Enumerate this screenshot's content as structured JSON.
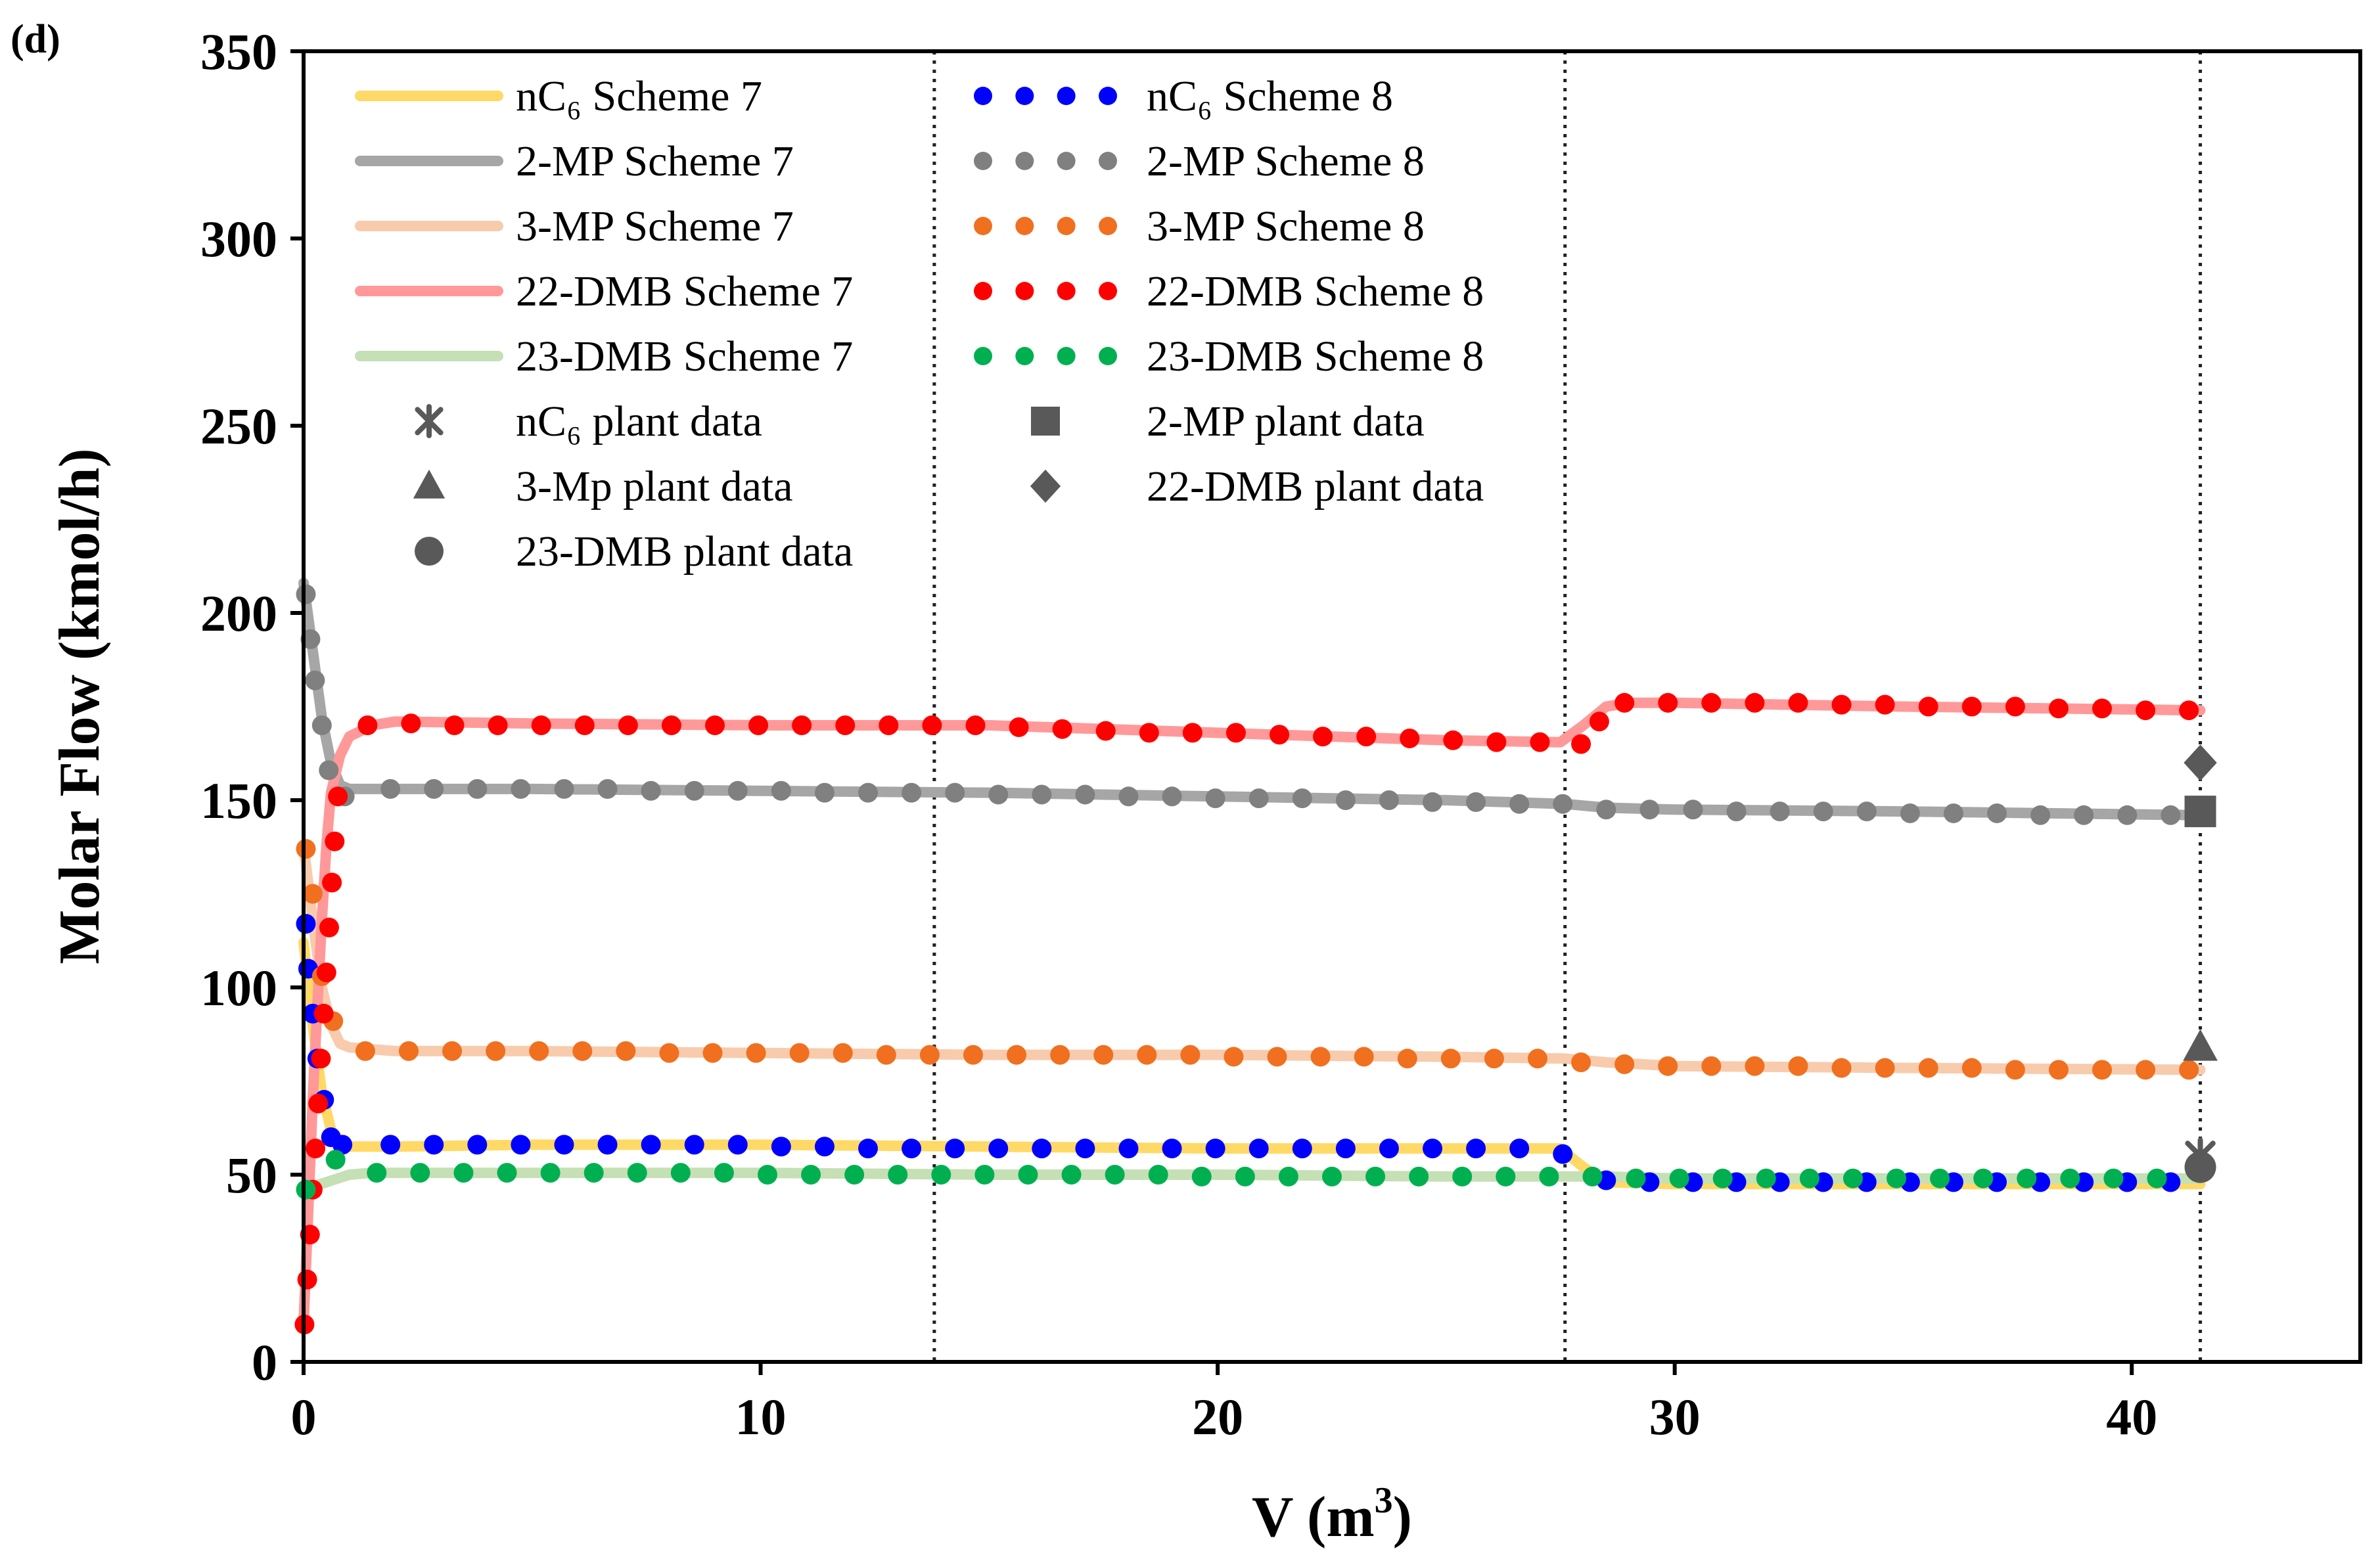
{
  "chart_data": {
    "type": "line",
    "panel_label": "(d)",
    "xlabel_main": "V (m",
    "xlabel_sup": "3",
    "xlabel_close": ")",
    "ylabel": "Molar Flow (kmol/h)",
    "xlim": [
      0,
      45
    ],
    "ylim": [
      0,
      350
    ],
    "xticks": [
      0,
      10,
      20,
      30,
      40
    ],
    "yticks": [
      0,
      50,
      100,
      150,
      200,
      250,
      300,
      350
    ],
    "grid": false,
    "legend_position": "top-left",
    "vlines": [
      13.8,
      27.6,
      41.5
    ],
    "line_series": [
      {
        "name": "nC₆ Scheme 7",
        "color": "#FFD966",
        "x": [
          0,
          0.2,
          0.4,
          0.6,
          0.8,
          1.0,
          2,
          5,
          10,
          15,
          20,
          25,
          27.5,
          28,
          28.5,
          30,
          35,
          41.5
        ],
        "y": [
          112,
          90,
          72,
          62,
          58,
          57.5,
          57.5,
          58,
          58,
          57.5,
          57,
          57,
          57,
          52,
          48,
          47.5,
          47.5,
          47.5
        ]
      },
      {
        "name": "2-MP Scheme 7",
        "color": "#A6A6A6",
        "x": [
          0,
          0.2,
          0.4,
          0.6,
          0.8,
          1.0,
          2,
          5,
          10,
          15,
          20,
          25,
          27.6,
          28.5,
          30,
          35,
          41.5
        ],
        "y": [
          208,
          190,
          172,
          160,
          154,
          153,
          153,
          153,
          152.5,
          152,
          151,
          150,
          149,
          148,
          147.5,
          147,
          146
        ]
      },
      {
        "name": "3-MP Scheme 7",
        "color": "#F8CBAD",
        "x": [
          0,
          0.2,
          0.4,
          0.6,
          0.8,
          1.0,
          2,
          5,
          10,
          15,
          20,
          25,
          27.6,
          28.5,
          30,
          35,
          41.5
        ],
        "y": [
          138,
          118,
          100,
          90,
          85,
          84,
          83,
          83,
          82.5,
          82,
          82,
          81.5,
          81,
          80,
          79,
          78.5,
          78
        ]
      },
      {
        "name": "22-DMB Scheme 7",
        "color": "#FF9999",
        "x": [
          0,
          0.1,
          0.2,
          0.3,
          0.4,
          0.5,
          0.6,
          0.8,
          1.0,
          1.5,
          2,
          5,
          10,
          15,
          20,
          25,
          27.5,
          28,
          28.5,
          29,
          30,
          35,
          41.5
        ],
        "y": [
          10,
          40,
          70,
          95,
          118,
          138,
          152,
          162,
          167,
          170,
          171,
          170.5,
          170,
          170,
          168,
          166,
          165.5,
          170,
          175,
          176,
          176,
          175,
          174
        ]
      },
      {
        "name": "23-DMB Scheme 7",
        "color": "#C5E0B4",
        "x": [
          0,
          0.5,
          1.0,
          1.5,
          2,
          5,
          10,
          15,
          20,
          25,
          27.6,
          28.5,
          30,
          35,
          41.5
        ],
        "y": [
          46,
          48,
          50,
          50.5,
          50.5,
          50.5,
          50.5,
          50,
          50,
          49.5,
          49.5,
          49.5,
          49,
          49,
          49
        ]
      }
    ],
    "dot_series": [
      {
        "name": "nC₆ Scheme 8",
        "color": "#0000FF",
        "x": [
          0.05,
          0.1,
          0.2,
          0.3,
          0.45,
          0.6,
          0.85,
          1.9,
          2.85,
          3.8,
          4.75,
          5.7,
          6.65,
          7.6,
          8.55,
          9.5,
          10.45,
          11.4,
          12.35,
          13.3,
          14.25,
          15.2,
          16.15,
          17.1,
          18.05,
          19,
          19.95,
          20.9,
          21.85,
          22.8,
          23.75,
          24.7,
          25.65,
          26.6,
          27.55,
          28.5,
          29.45,
          30.4,
          31.35,
          32.3,
          33.25,
          34.2,
          35.15,
          36.1,
          37.05,
          38,
          38.95,
          39.9,
          40.85
        ],
        "y": [
          117,
          105,
          93,
          81,
          70,
          60,
          58,
          58,
          58,
          58,
          58,
          58,
          58,
          58,
          58,
          58,
          57.5,
          57.5,
          57,
          57,
          57,
          57,
          57,
          57,
          57,
          57,
          57,
          57,
          57,
          57,
          57,
          57,
          57,
          57,
          55.5,
          48.5,
          48,
          48,
          48,
          48,
          48,
          48,
          48,
          48,
          48,
          48,
          48,
          48,
          48
        ]
      },
      {
        "name": "2-MP Scheme 8",
        "color": "#808080",
        "x": [
          0.05,
          0.15,
          0.25,
          0.4,
          0.55,
          0.9,
          1.9,
          2.85,
          3.8,
          4.75,
          5.7,
          6.65,
          7.6,
          8.55,
          9.5,
          10.45,
          11.4,
          12.35,
          13.3,
          14.25,
          15.2,
          16.15,
          17.1,
          18.05,
          19,
          19.95,
          20.9,
          21.85,
          22.8,
          23.75,
          24.7,
          25.65,
          26.6,
          27.55,
          28.5,
          29.45,
          30.4,
          31.35,
          32.3,
          33.25,
          34.2,
          35.15,
          36.1,
          37.05,
          38,
          38.95,
          39.9,
          40.85
        ],
        "y": [
          205,
          193,
          182,
          170,
          158,
          151,
          153,
          153,
          153,
          153,
          153,
          153,
          152.5,
          152.5,
          152.5,
          152.5,
          152,
          152,
          152,
          152,
          151.5,
          151.5,
          151.5,
          151,
          151,
          150.5,
          150.5,
          150.5,
          150,
          150,
          149.5,
          149.5,
          149,
          149,
          147.5,
          147.5,
          147.5,
          147,
          147,
          147,
          147,
          146.5,
          146.5,
          146.5,
          146,
          146,
          146,
          146
        ]
      },
      {
        "name": "3-MP Scheme 8",
        "color": "#F07020",
        "x": [
          0.05,
          0.2,
          0.4,
          0.65,
          1.35,
          2.3,
          3.25,
          4.2,
          5.15,
          6.1,
          7.05,
          8,
          8.95,
          9.9,
          10.85,
          11.8,
          12.75,
          13.7,
          14.65,
          15.6,
          16.55,
          17.5,
          18.45,
          19.4,
          20.35,
          21.3,
          22.25,
          23.2,
          24.15,
          25.1,
          26.05,
          27,
          27.95,
          28.9,
          29.85,
          30.8,
          31.75,
          32.7,
          33.65,
          34.6,
          35.55,
          36.5,
          37.45,
          38.4,
          39.35,
          40.3,
          41.25
        ],
        "y": [
          137,
          125,
          103,
          91,
          83,
          83,
          83,
          83,
          83,
          83,
          83,
          82.5,
          82.5,
          82.5,
          82.5,
          82.5,
          82,
          82,
          82,
          82,
          82,
          82,
          82,
          82,
          81.5,
          81.5,
          81.5,
          81.5,
          81,
          81,
          81,
          81,
          80,
          79.5,
          79,
          79,
          79,
          79,
          78.5,
          78.5,
          78.5,
          78.5,
          78,
          78,
          78,
          78,
          78
        ]
      },
      {
        "name": "22-DMB Scheme 8",
        "color": "#FF0000",
        "x": [
          0.02,
          0.08,
          0.14,
          0.2,
          0.26,
          0.32,
          0.38,
          0.44,
          0.5,
          0.56,
          0.62,
          0.68,
          0.75,
          1.4,
          2.35,
          3.3,
          4.25,
          5.2,
          6.15,
          7.1,
          8.05,
          9,
          9.95,
          10.9,
          11.85,
          12.8,
          13.75,
          14.7,
          15.65,
          16.6,
          17.55,
          18.5,
          19.45,
          20.4,
          21.35,
          22.3,
          23.25,
          24.2,
          25.15,
          26.1,
          27.05,
          27.95,
          28.35,
          28.9,
          29.85,
          30.8,
          31.75,
          32.7,
          33.65,
          34.6,
          35.55,
          36.5,
          37.45,
          38.4,
          39.35,
          40.3,
          41.25
        ],
        "y": [
          10,
          22,
          34,
          46,
          57,
          69,
          81,
          93,
          104,
          116,
          128,
          139,
          151,
          170,
          170.5,
          170,
          170,
          170,
          170,
          170,
          170,
          170,
          170,
          170,
          170,
          170,
          170,
          170,
          169.5,
          169,
          168.5,
          168,
          168,
          168,
          167.5,
          167,
          167,
          166.5,
          166,
          165.5,
          165.5,
          165,
          171,
          176,
          176,
          176,
          176,
          176,
          175.5,
          175.5,
          175,
          175,
          175,
          174.5,
          174.5,
          174,
          174
        ]
      },
      {
        "name": "23-DMB Scheme 8",
        "color": "#00B050",
        "x": [
          0.05,
          0.7,
          1.6,
          2.55,
          3.5,
          4.45,
          5.4,
          6.35,
          7.3,
          8.25,
          9.2,
          10.15,
          11.1,
          12.05,
          13,
          13.95,
          14.9,
          15.85,
          16.8,
          17.75,
          18.7,
          19.65,
          20.6,
          21.55,
          22.5,
          23.45,
          24.4,
          25.35,
          26.3,
          27.25,
          28.2,
          29.15,
          30.1,
          31.05,
          32,
          32.95,
          33.9,
          34.85,
          35.8,
          36.75,
          37.7,
          38.65,
          39.6,
          40.55
        ],
        "y": [
          46,
          54,
          50.5,
          50.5,
          50.5,
          50.5,
          50.5,
          50.5,
          50.5,
          50.5,
          50.5,
          50,
          50,
          50,
          50,
          50,
          50,
          50,
          50,
          50,
          50,
          49.5,
          49.5,
          49.5,
          49.5,
          49.5,
          49.5,
          49.5,
          49.5,
          49.5,
          49.5,
          49,
          49,
          49,
          49,
          49,
          49,
          49,
          49,
          49,
          49,
          49,
          49,
          49
        ]
      }
    ],
    "plant_data": [
      {
        "name": "nC₆ plant data",
        "marker": "asterisk",
        "x": 41.5,
        "y": 55
      },
      {
        "name": "2-MP plant data",
        "marker": "square",
        "x": 41.5,
        "y": 147
      },
      {
        "name": "3-Mp plant data",
        "marker": "triangle",
        "x": 41.5,
        "y": 84
      },
      {
        "name": "22-DMB plant data",
        "marker": "diamond",
        "x": 41.5,
        "y": 160
      },
      {
        "name": "23-DMB plant data",
        "marker": "circle",
        "x": 41.5,
        "y": 52
      }
    ],
    "marker_color": "#595959"
  }
}
